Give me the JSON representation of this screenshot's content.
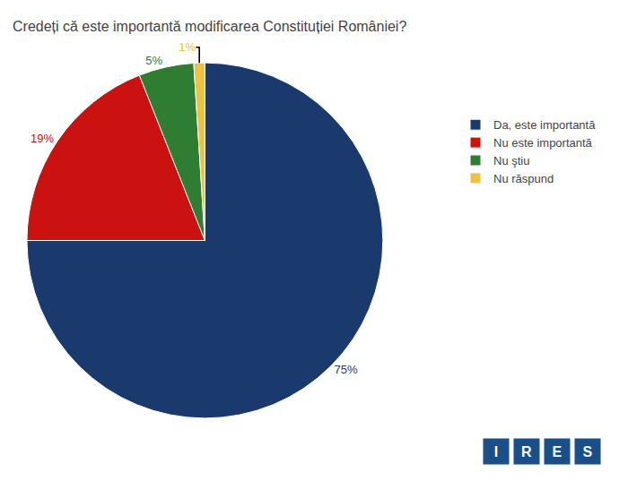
{
  "chart_data": {
    "type": "pie",
    "title": "Credeți că este importantă modificarea Constituției României?",
    "categories": [
      "Da, este importantă",
      "Nu este importantă",
      "Nu ştiu",
      "Nu răspund"
    ],
    "values": [
      75,
      19,
      5,
      1
    ],
    "value_labels": [
      "75%",
      "19%",
      "5%",
      "1%"
    ],
    "colors": [
      "#1a3a6e",
      "#cc1111",
      "#2e7d32",
      "#f0c040"
    ],
    "data_labels": true,
    "legend": "right",
    "annotations": [
      "I",
      "R",
      "E",
      "S"
    ]
  }
}
